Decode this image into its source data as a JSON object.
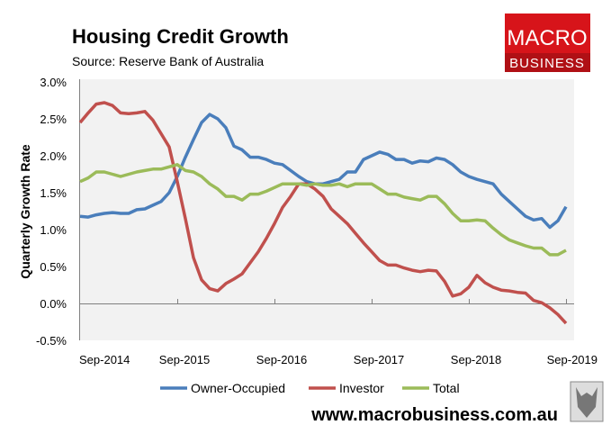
{
  "chart_data": {
    "type": "line",
    "title": "Housing Credit Growth",
    "subtitle": "Source: Reserve Bank of Australia",
    "xlabel": "",
    "ylabel": "Quarterly Growth Rate",
    "ylim": [
      -0.5,
      3.0
    ],
    "yticks": [
      "3.0%",
      "2.5%",
      "2.0%",
      "1.5%",
      "1.0%",
      "0.5%",
      "0.0%",
      "-0.5%"
    ],
    "ytick_values": [
      3.0,
      2.5,
      2.0,
      1.5,
      1.0,
      0.5,
      0.0,
      -0.5
    ],
    "xticks": [
      "Sep-2014",
      "Sep-2015",
      "Sep-2016",
      "Sep-2017",
      "Sep-2018",
      "Sep-2019"
    ],
    "x_period": "monthly, Sep-2014 to Sep-2019",
    "legend_position": "bottom",
    "grid": false,
    "series": [
      {
        "name": "Owner-Occupied",
        "color": "#4a7ebb",
        "values": [
          1.18,
          1.17,
          1.2,
          1.22,
          1.23,
          1.22,
          1.22,
          1.27,
          1.28,
          1.33,
          1.38,
          1.5,
          1.72,
          1.98,
          2.22,
          2.45,
          2.56,
          2.5,
          2.38,
          2.13,
          2.08,
          1.98,
          1.98,
          1.95,
          1.9,
          1.88,
          1.8,
          1.72,
          1.65,
          1.62,
          1.62,
          1.65,
          1.68,
          1.78,
          1.78,
          1.95,
          2.0,
          2.05,
          2.02,
          1.95,
          1.95,
          1.9,
          1.93,
          1.92,
          1.97,
          1.95,
          1.88,
          1.78,
          1.72,
          1.68,
          1.65,
          1.62,
          1.48,
          1.38,
          1.28,
          1.18,
          1.13,
          1.15,
          1.03,
          1.12,
          1.31
        ]
      },
      {
        "name": "Investor",
        "color": "#c0504d",
        "values": [
          2.45,
          2.58,
          2.7,
          2.72,
          2.68,
          2.58,
          2.57,
          2.58,
          2.6,
          2.48,
          2.3,
          2.12,
          1.65,
          1.15,
          0.62,
          0.32,
          0.2,
          0.17,
          0.27,
          0.33,
          0.4,
          0.55,
          0.7,
          0.88,
          1.08,
          1.3,
          1.45,
          1.62,
          1.62,
          1.55,
          1.45,
          1.28,
          1.18,
          1.08,
          0.95,
          0.82,
          0.7,
          0.58,
          0.52,
          0.52,
          0.48,
          0.45,
          0.43,
          0.45,
          0.44,
          0.3,
          0.1,
          0.13,
          0.22,
          0.38,
          0.28,
          0.22,
          0.18,
          0.17,
          0.15,
          0.14,
          0.04,
          0.01,
          -0.06,
          -0.15,
          -0.27
        ]
      },
      {
        "name": "Total",
        "color": "#9bbb59",
        "values": [
          1.65,
          1.7,
          1.78,
          1.78,
          1.75,
          1.72,
          1.75,
          1.78,
          1.8,
          1.82,
          1.82,
          1.85,
          1.88,
          1.8,
          1.78,
          1.72,
          1.62,
          1.55,
          1.45,
          1.45,
          1.4,
          1.48,
          1.48,
          1.52,
          1.57,
          1.62,
          1.62,
          1.62,
          1.6,
          1.62,
          1.6,
          1.6,
          1.62,
          1.58,
          1.62,
          1.62,
          1.62,
          1.55,
          1.48,
          1.48,
          1.44,
          1.42,
          1.4,
          1.45,
          1.45,
          1.35,
          1.22,
          1.12,
          1.12,
          1.13,
          1.12,
          1.02,
          0.93,
          0.86,
          0.82,
          0.78,
          0.75,
          0.75,
          0.66,
          0.66,
          0.72
        ]
      }
    ]
  },
  "branding": {
    "logo_top": "MACRO",
    "logo_bottom": "BUSINESS",
    "website": "www.macrobusiness.com.au",
    "logo_red": "#d7141a",
    "logo_dark_red": "#b01015"
  }
}
